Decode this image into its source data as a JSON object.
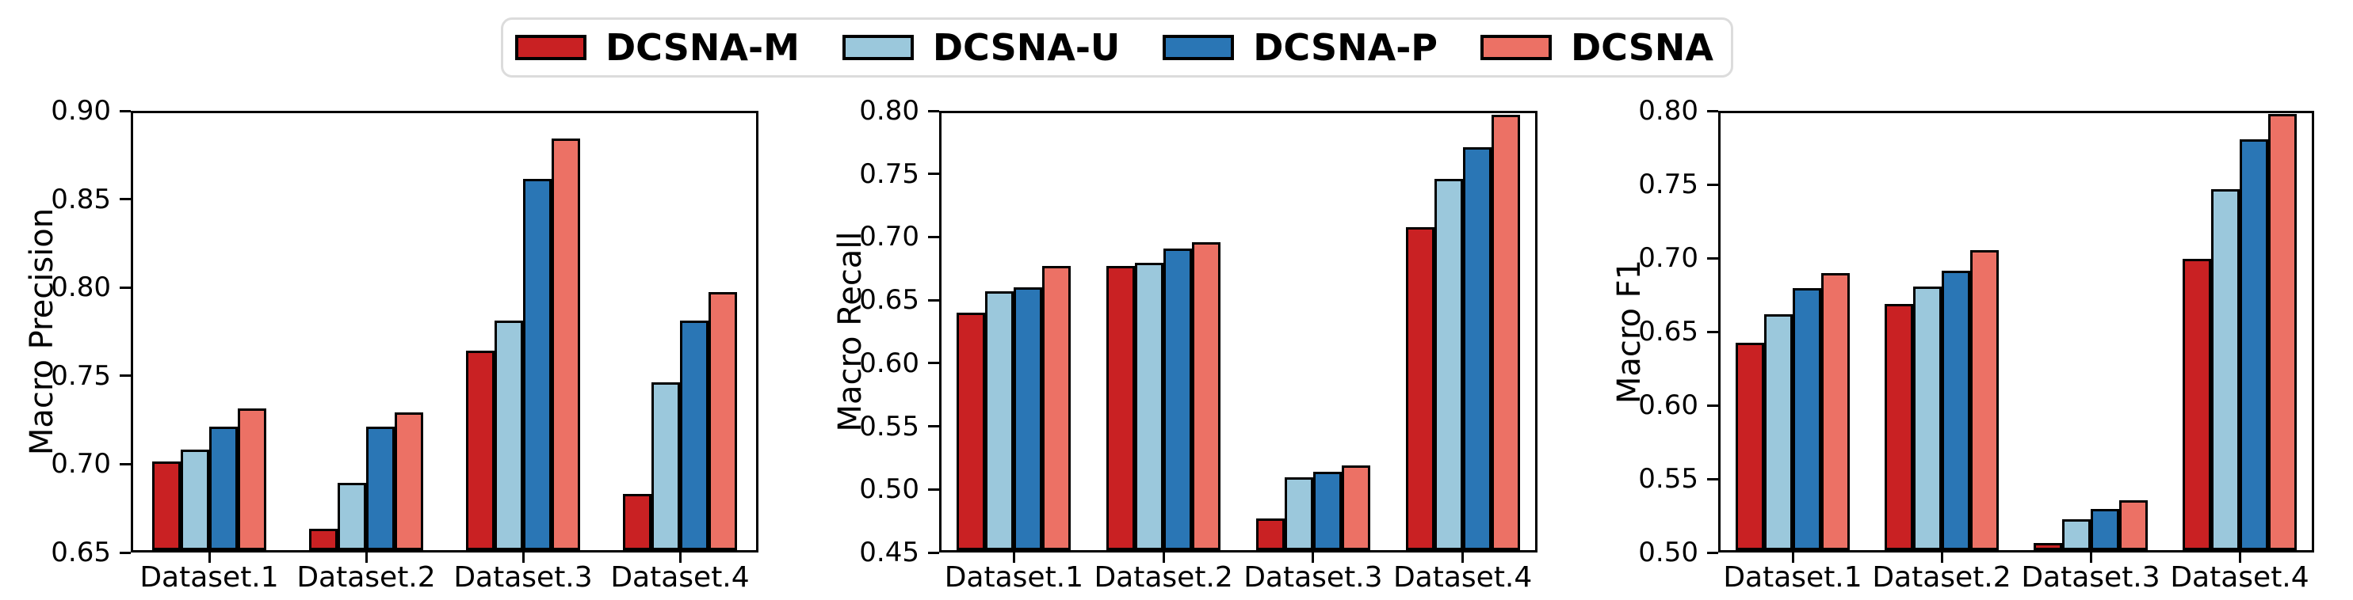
{
  "legend": {
    "border_color": "#dcdcdc",
    "edge_color": "#000000",
    "items": [
      {
        "label": "DCSNA-M",
        "color": "#c92123"
      },
      {
        "label": "DCSNA-U",
        "color": "#9bc8dc"
      },
      {
        "label": "DCSNA-P",
        "color": "#2a76b5"
      },
      {
        "label": "DCSNA",
        "color": "#ec7165"
      }
    ]
  },
  "chart_data": [
    {
      "type": "bar",
      "title": "",
      "ylabel": "Macro Precision",
      "xlabel": "",
      "categories": [
        "Dataset.1",
        "Dataset.2",
        "Dataset.3",
        "Dataset.4"
      ],
      "ylim": [
        0.65,
        0.9
      ],
      "yticks": [
        0.65,
        0.7,
        0.75,
        0.8,
        0.85,
        0.9
      ],
      "grid": false,
      "legend_position": "figure-top-center",
      "series": [
        {
          "name": "DCSNA-M",
          "color": "#c92123",
          "values": [
            0.7,
            0.662,
            0.763,
            0.682
          ]
        },
        {
          "name": "DCSNA-U",
          "color": "#9bc8dc",
          "values": [
            0.707,
            0.688,
            0.78,
            0.745
          ]
        },
        {
          "name": "DCSNA-P",
          "color": "#2a76b5",
          "values": [
            0.72,
            0.72,
            0.86,
            0.78
          ]
        },
        {
          "name": "DCSNA",
          "color": "#ec7165",
          "values": [
            0.73,
            0.728,
            0.883,
            0.796
          ]
        }
      ]
    },
    {
      "type": "bar",
      "title": "",
      "ylabel": "Macro Recall",
      "xlabel": "",
      "categories": [
        "Dataset.1",
        "Dataset.2",
        "Dataset.3",
        "Dataset.4"
      ],
      "ylim": [
        0.45,
        0.8
      ],
      "yticks": [
        0.45,
        0.5,
        0.55,
        0.6,
        0.65,
        0.7,
        0.75,
        0.8
      ],
      "grid": false,
      "legend_position": "figure-top-center",
      "series": [
        {
          "name": "DCSNA-M",
          "color": "#c92123",
          "values": [
            0.638,
            0.675,
            0.475,
            0.706
          ]
        },
        {
          "name": "DCSNA-U",
          "color": "#9bc8dc",
          "values": [
            0.655,
            0.678,
            0.508,
            0.744
          ]
        },
        {
          "name": "DCSNA-P",
          "color": "#2a76b5",
          "values": [
            0.658,
            0.689,
            0.512,
            0.769
          ]
        },
        {
          "name": "DCSNA",
          "color": "#ec7165",
          "values": [
            0.675,
            0.694,
            0.517,
            0.795
          ]
        }
      ]
    },
    {
      "type": "bar",
      "title": "",
      "ylabel": "Macro F1",
      "xlabel": "",
      "categories": [
        "Dataset.1",
        "Dataset.2",
        "Dataset.3",
        "Dataset.4"
      ],
      "ylim": [
        0.5,
        0.8
      ],
      "yticks": [
        0.5,
        0.55,
        0.6,
        0.65,
        0.7,
        0.75,
        0.8
      ],
      "grid": false,
      "legend_position": "figure-top-center",
      "series": [
        {
          "name": "DCSNA-M",
          "color": "#c92123",
          "values": [
            0.641,
            0.667,
            0.505,
            0.698
          ]
        },
        {
          "name": "DCSNA-U",
          "color": "#9bc8dc",
          "values": [
            0.66,
            0.679,
            0.521,
            0.745
          ]
        },
        {
          "name": "DCSNA-P",
          "color": "#2a76b5",
          "values": [
            0.678,
            0.69,
            0.528,
            0.779
          ]
        },
        {
          "name": "DCSNA",
          "color": "#ec7165",
          "values": [
            0.688,
            0.704,
            0.534,
            0.796
          ]
        }
      ]
    }
  ]
}
